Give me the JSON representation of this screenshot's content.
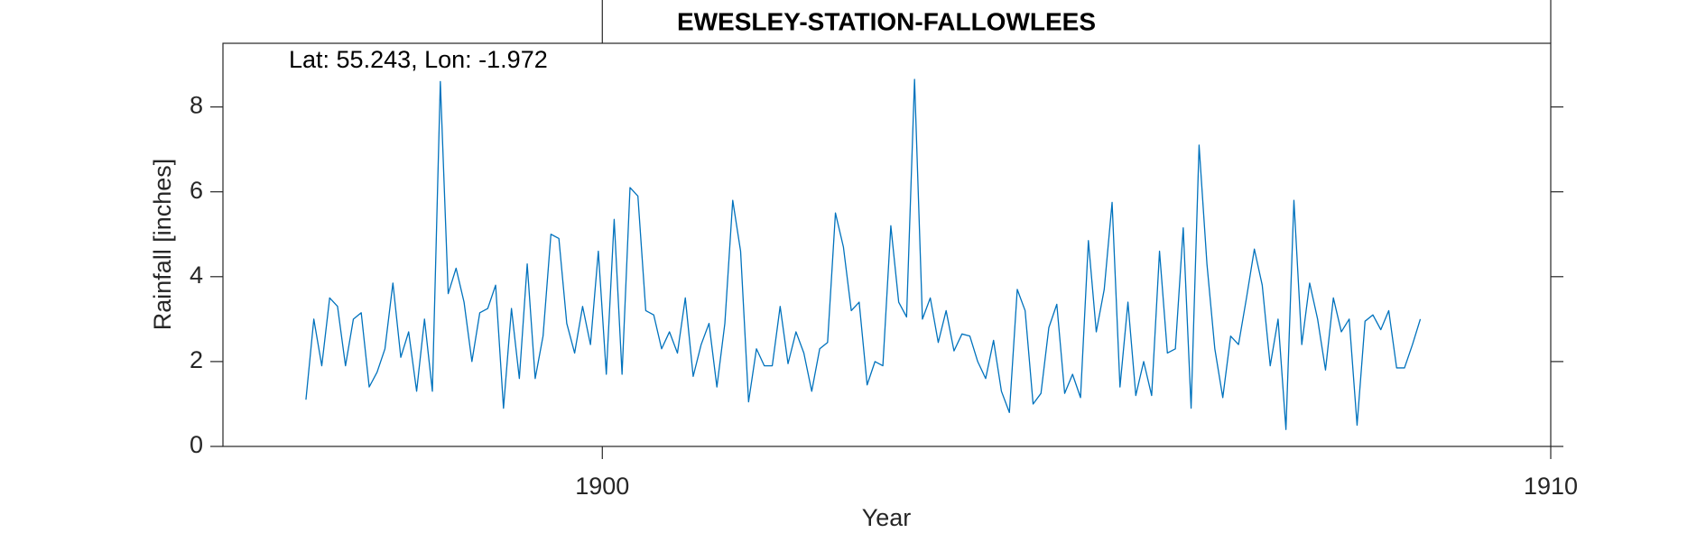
{
  "chart_data": {
    "type": "line",
    "title": "EWESLEY-STATION-FALLOWLEES",
    "annotation": "Lat: 55.243, Lon: -1.972",
    "xlabel": "Year",
    "ylabel": "Rainfall [inches]",
    "color": "#0072bd",
    "xlim": [
      1896,
      1910
    ],
    "xticks": [
      1900,
      1910
    ],
    "ylim": [
      0,
      9.5
    ],
    "yticks": [
      0,
      2,
      4,
      6,
      8
    ],
    "grid": false,
    "x": [
      1896.875,
      1896.958,
      1897.042,
      1897.125,
      1897.208,
      1897.292,
      1897.375,
      1897.458,
      1897.542,
      1897.625,
      1897.708,
      1897.792,
      1897.875,
      1897.958,
      1898.042,
      1898.125,
      1898.208,
      1898.292,
      1898.375,
      1898.458,
      1898.542,
      1898.625,
      1898.708,
      1898.792,
      1898.875,
      1898.958,
      1899.042,
      1899.125,
      1899.208,
      1899.292,
      1899.375,
      1899.458,
      1899.542,
      1899.625,
      1899.708,
      1899.792,
      1899.875,
      1899.958,
      1900.042,
      1900.125,
      1900.208,
      1900.292,
      1900.375,
      1900.458,
      1900.542,
      1900.625,
      1900.708,
      1900.792,
      1900.875,
      1900.958,
      1901.042,
      1901.125,
      1901.208,
      1901.292,
      1901.375,
      1901.458,
      1901.542,
      1901.625,
      1901.708,
      1901.792,
      1901.875,
      1901.958,
      1902.042,
      1902.125,
      1902.208,
      1902.292,
      1902.375,
      1902.458,
      1902.542,
      1902.625,
      1902.708,
      1902.792,
      1902.875,
      1902.958,
      1903.042,
      1903.125,
      1903.208,
      1903.292,
      1903.375,
      1903.458,
      1903.542,
      1903.625,
      1903.708,
      1903.792,
      1903.875,
      1903.958,
      1904.042,
      1904.125,
      1904.208,
      1904.292,
      1904.375,
      1904.458,
      1904.542,
      1904.625,
      1904.708,
      1904.792,
      1904.875,
      1904.958,
      1905.042,
      1905.125,
      1905.208,
      1905.292,
      1905.375,
      1905.458,
      1905.542,
      1905.625,
      1905.708,
      1905.792,
      1905.875,
      1905.958,
      1906.042,
      1906.125,
      1906.208,
      1906.292,
      1906.375,
      1906.458,
      1906.542,
      1906.625,
      1906.708,
      1906.792,
      1906.875,
      1906.958,
      1907.042,
      1907.125,
      1907.208,
      1907.292,
      1907.375,
      1907.458,
      1907.542,
      1907.625,
      1907.708,
      1907.792,
      1907.875,
      1907.958,
      1908.042,
      1908.125,
      1908.208,
      1908.292,
      1908.375,
      1908.458,
      1908.542,
      1908.625
    ],
    "values": [
      1.1,
      3.0,
      1.9,
      3.5,
      3.3,
      1.9,
      3.0,
      3.15,
      1.4,
      1.75,
      2.3,
      3.85,
      2.1,
      2.7,
      1.3,
      3.0,
      1.3,
      8.6,
      3.6,
      4.2,
      3.4,
      2.0,
      3.15,
      3.25,
      3.8,
      0.9,
      3.25,
      1.6,
      4.3,
      1.6,
      2.6,
      5.0,
      4.9,
      2.9,
      2.2,
      3.3,
      2.4,
      4.6,
      1.7,
      5.35,
      1.7,
      6.1,
      5.9,
      3.2,
      3.1,
      2.3,
      2.7,
      2.2,
      3.5,
      1.65,
      2.4,
      2.9,
      1.4,
      2.9,
      5.8,
      4.6,
      1.05,
      2.3,
      1.9,
      1.9,
      3.3,
      1.95,
      2.7,
      2.2,
      1.3,
      2.3,
      2.45,
      5.5,
      4.7,
      3.2,
      3.4,
      1.45,
      2.0,
      1.9,
      5.2,
      3.4,
      3.05,
      8.65,
      3.0,
      3.5,
      2.45,
      3.2,
      2.25,
      2.65,
      2.6,
      2.0,
      1.6,
      2.5,
      1.3,
      0.8,
      3.7,
      3.2,
      1.0,
      1.25,
      2.8,
      3.35,
      1.25,
      1.7,
      1.15,
      4.85,
      2.7,
      3.7,
      5.75,
      1.4,
      3.4,
      1.2,
      2.0,
      1.2,
      4.6,
      2.2,
      2.3,
      5.15,
      0.9,
      7.1,
      4.3,
      2.3,
      1.15,
      2.6,
      2.4,
      3.5,
      4.65,
      3.8,
      1.9,
      3.0,
      0.4,
      5.8,
      2.4,
      3.85,
      3.0,
      1.8,
      3.5,
      2.7,
      3.0,
      0.5,
      2.95,
      3.1,
      2.75,
      3.2,
      1.85,
      1.85,
      2.4,
      3.0
    ]
  }
}
